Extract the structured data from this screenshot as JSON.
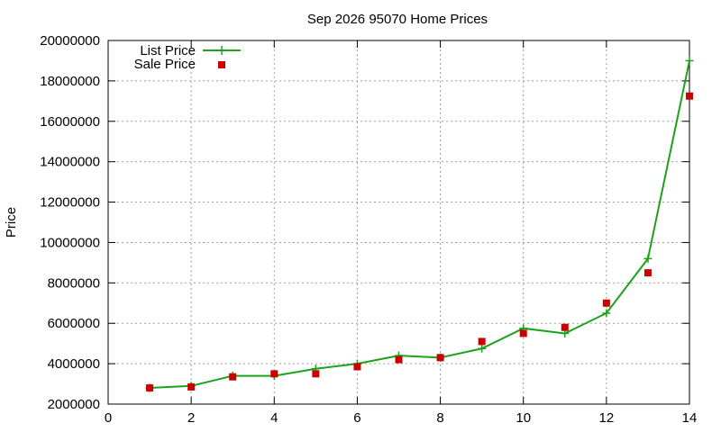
{
  "chart_data": {
    "type": "line",
    "title": "Sep 2026 95070 Home Prices",
    "xlabel": "",
    "ylabel": "Price",
    "xlim": [
      0,
      14
    ],
    "ylim": [
      2000000,
      20000000
    ],
    "x_ticks": [
      0,
      2,
      4,
      6,
      8,
      10,
      12,
      14
    ],
    "y_ticks": [
      2000000,
      4000000,
      6000000,
      8000000,
      10000000,
      12000000,
      14000000,
      16000000,
      18000000,
      20000000
    ],
    "grid": true,
    "legend_position": "top-left",
    "series": [
      {
        "name": "List Price",
        "style": "line-plus",
        "color": "#1aa31a",
        "x": [
          1,
          2,
          3,
          4,
          5,
          6,
          7,
          8,
          9,
          10,
          11,
          12,
          13,
          14
        ],
        "values": [
          2800000,
          2900000,
          3400000,
          3400000,
          3750000,
          4000000,
          4400000,
          4300000,
          4750000,
          5750000,
          5500000,
          6500000,
          9200000,
          19000000
        ]
      },
      {
        "name": "Sale Price",
        "style": "square",
        "color": "#cc0000",
        "x": [
          1,
          2,
          3,
          4,
          5,
          6,
          7,
          8,
          9,
          10,
          11,
          12,
          13,
          14
        ],
        "values": [
          2800000,
          2850000,
          3350000,
          3500000,
          3500000,
          3850000,
          4200000,
          4300000,
          5100000,
          5500000,
          5800000,
          7000000,
          8500000,
          17250000
        ]
      }
    ]
  }
}
